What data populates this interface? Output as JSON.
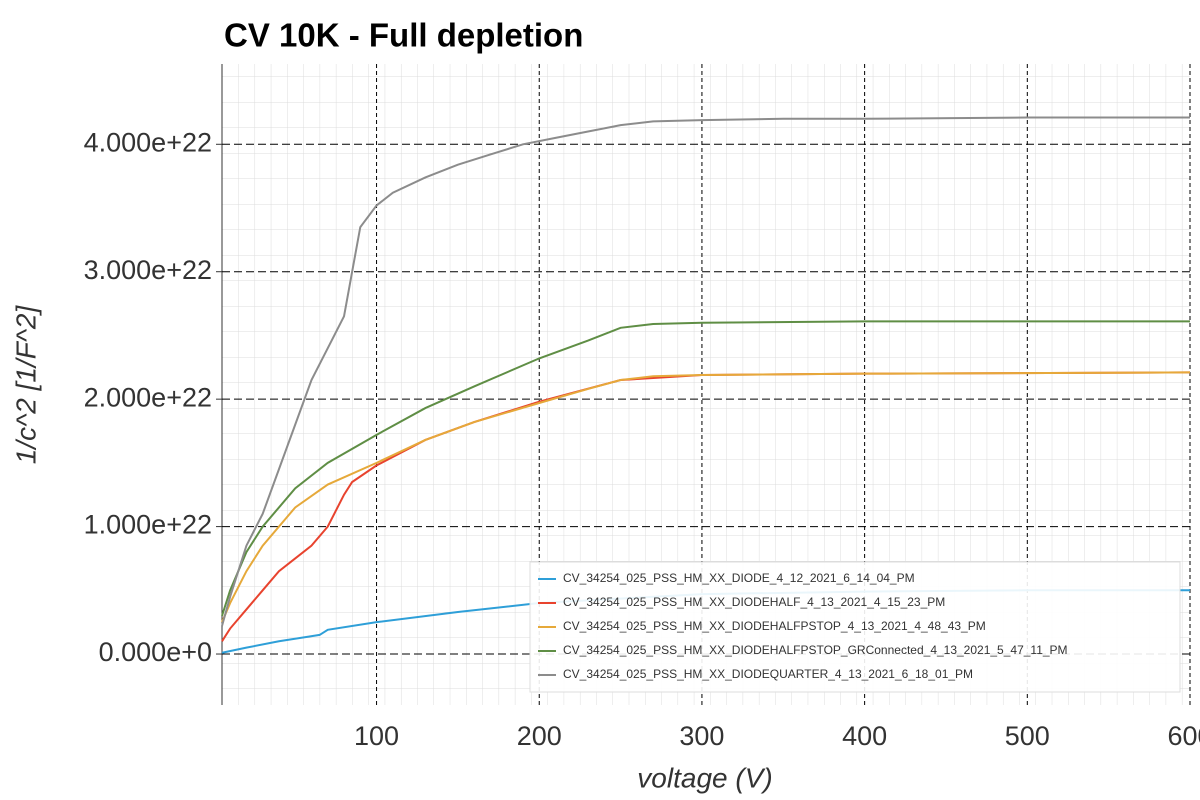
{
  "chart_data": {
    "type": "line",
    "title": "CV 10K - Full depletion",
    "x_label": "voltage (V)",
    "y_label": "1/c^2 [1/F^2]",
    "xlim": [
      5,
      600
    ],
    "ylim": [
      -4e+21,
      4.63e+22
    ],
    "xticks": [
      100,
      200,
      300,
      400,
      500,
      600
    ],
    "yticks": [
      {
        "value": 0,
        "label": "0.000e+0"
      },
      {
        "value": 1e+22,
        "label": "1.000e+22"
      },
      {
        "value": 2e+22,
        "label": "2.000e+22"
      },
      {
        "value": 3e+22,
        "label": "3.000e+22"
      },
      {
        "value": 4e+22,
        "label": "4.000e+22"
      }
    ],
    "grid": true,
    "legend": "lower right",
    "series": [
      {
        "name": "CV_34254_025_PSS_HM_XX_DIODE_4_12_2021_6_14_04_PM",
        "color": "#2e9fd8",
        "x": [
          5,
          20,
          40,
          65,
          70,
          100,
          150,
          200,
          300,
          400,
          500,
          600
        ],
        "values": [
          1e+20,
          5e+20,
          1e+21,
          1.5e+21,
          1.9e+21,
          2.5e+21,
          3.3e+21,
          4e+21,
          4.7e+21,
          4.9e+21,
          5e+21,
          5e+21
        ]
      },
      {
        "name": "CV_34254_025_PSS_HM_XX_DIODEHALF_4_13_2021_4_15_23_PM",
        "color": "#e8432e",
        "x": [
          5,
          10,
          20,
          30,
          40,
          50,
          60,
          70,
          80,
          85,
          100,
          130,
          160,
          200,
          250,
          300,
          400,
          600
        ],
        "values": [
          1e+21,
          2e+21,
          3.5e+21,
          5e+21,
          6.5e+21,
          7.5e+21,
          8.5e+21,
          1e+22,
          1.25e+22,
          1.35e+22,
          1.48e+22,
          1.68e+22,
          1.82e+22,
          1.98e+22,
          2.15e+22,
          2.19e+22,
          2.2e+22,
          2.21e+22
        ]
      },
      {
        "name": "CV_34254_025_PSS_HM_XX_DIODEHALFPSTOP_4_13_2021_4_48_43_PM",
        "color": "#e6a93a",
        "x": [
          5,
          10,
          20,
          30,
          50,
          70,
          100,
          130,
          160,
          200,
          230,
          250,
          270,
          300,
          400,
          600
        ],
        "values": [
          2.5e+21,
          4e+21,
          6.5e+21,
          8.5e+21,
          1.15e+22,
          1.33e+22,
          1.5e+22,
          1.68e+22,
          1.82e+22,
          1.97e+22,
          2.08e+22,
          2.15e+22,
          2.18e+22,
          2.19e+22,
          2.2e+22,
          2.21e+22
        ]
      },
      {
        "name": "CV_34254_025_PSS_HM_XX_DIODEHALFPSTOP_GRConnected_4_13_2021_5_47_11_PM",
        "color": "#5f8e45",
        "x": [
          5,
          10,
          20,
          30,
          50,
          70,
          100,
          130,
          160,
          200,
          230,
          250,
          270,
          300,
          400,
          600
        ],
        "values": [
          3e+21,
          5e+21,
          8e+21,
          1e+22,
          1.3e+22,
          1.5e+22,
          1.72e+22,
          1.93e+22,
          2.1e+22,
          2.32e+22,
          2.46e+22,
          2.56e+22,
          2.59e+22,
          2.6e+22,
          2.61e+22,
          2.61e+22
        ]
      },
      {
        "name": "CV_34254_025_PSS_HM_XX_DIODEQUARTER_4_13_2021_6_18_01_PM",
        "color": "#8c8c8c",
        "x": [
          5,
          10,
          20,
          30,
          40,
          50,
          60,
          70,
          80,
          85,
          90,
          100,
          110,
          130,
          150,
          170,
          190,
          210,
          230,
          250,
          270,
          300,
          350,
          400,
          500,
          600
        ],
        "values": [
          2.2e+21,
          4.5e+21,
          8.5e+21,
          1.1e+22,
          1.45e+22,
          1.8e+22,
          2.15e+22,
          2.4e+22,
          2.65e+22,
          3e+22,
          3.35e+22,
          3.52e+22,
          3.62e+22,
          3.74e+22,
          3.84e+22,
          3.92e+22,
          4e+22,
          4.05e+22,
          4.1e+22,
          4.15e+22,
          4.18e+22,
          4.19e+22,
          4.2e+22,
          4.2e+22,
          4.21e+22,
          4.21e+22
        ]
      }
    ]
  }
}
